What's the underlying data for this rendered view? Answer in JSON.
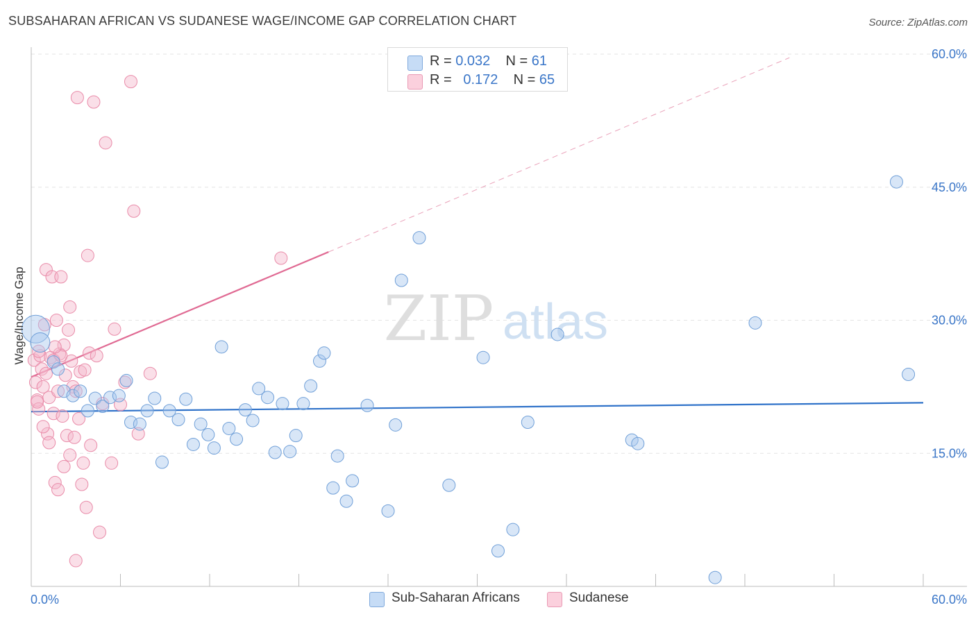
{
  "title": "SUBSAHARAN AFRICAN VS SUDANESE WAGE/INCOME GAP CORRELATION CHART",
  "source": "Source: ZipAtlas.com",
  "watermark": {
    "zip": "ZIP",
    "atlas": "atlas"
  },
  "legend": {
    "rows": [
      {
        "r_label": "R =",
        "r_value": "0.032",
        "n_label": "N =",
        "n_value": "61",
        "color": "#a8c8ee"
      },
      {
        "r_label": "R =",
        "r_value": "0.172",
        "n_label": "N =",
        "n_value": "65",
        "color": "#f5b8cb"
      }
    ]
  },
  "bottom_legend": {
    "items": [
      {
        "label": "Sub-Saharan Africans",
        "color": "#a8c8ee"
      },
      {
        "label": "Sudanese",
        "color": "#f5b8cb"
      }
    ]
  },
  "chart_data": {
    "type": "scatter",
    "title": "SUBSAHARAN AFRICAN VS SUDANESE WAGE/INCOME GAP CORRELATION CHART",
    "xlabel": "",
    "ylabel": "Wage/Income Gap",
    "xlim": [
      0,
      60
    ],
    "ylim": [
      0,
      60
    ],
    "x_tick_labels": [
      "0.0%",
      "60.0%"
    ],
    "y_ticks": [
      15,
      30,
      45,
      60
    ],
    "y_tick_labels": [
      "15.0%",
      "30.0%",
      "45.0%",
      "60.0%"
    ],
    "series": [
      {
        "name": "Sub-Saharan Africans",
        "color": "#a8c8ee",
        "stroke": "#6f9fd8",
        "points": [
          [
            0.3,
            29.0
          ],
          [
            0.6,
            27.5
          ],
          [
            1.5,
            25.3
          ],
          [
            1.8,
            24.5
          ],
          [
            2.2,
            22.0
          ],
          [
            2.8,
            21.5
          ],
          [
            3.3,
            22.0
          ],
          [
            3.8,
            19.8
          ],
          [
            4.3,
            21.2
          ],
          [
            4.8,
            20.3
          ],
          [
            5.3,
            21.3
          ],
          [
            5.9,
            21.5
          ],
          [
            6.4,
            23.2
          ],
          [
            6.7,
            18.5
          ],
          [
            7.3,
            18.3
          ],
          [
            7.8,
            19.8
          ],
          [
            8.3,
            21.2
          ],
          [
            8.8,
            14.0
          ],
          [
            9.3,
            19.8
          ],
          [
            9.9,
            18.8
          ],
          [
            10.4,
            21.1
          ],
          [
            10.9,
            16.0
          ],
          [
            11.4,
            18.3
          ],
          [
            11.9,
            17.1
          ],
          [
            12.3,
            15.6
          ],
          [
            12.8,
            27.0
          ],
          [
            13.3,
            17.8
          ],
          [
            13.8,
            16.6
          ],
          [
            14.4,
            19.9
          ],
          [
            14.9,
            18.7
          ],
          [
            15.3,
            22.3
          ],
          [
            15.9,
            21.3
          ],
          [
            16.4,
            15.1
          ],
          [
            16.9,
            20.6
          ],
          [
            17.4,
            15.2
          ],
          [
            17.8,
            17.0
          ],
          [
            18.3,
            20.6
          ],
          [
            18.8,
            22.6
          ],
          [
            19.4,
            25.4
          ],
          [
            19.7,
            26.3
          ],
          [
            20.3,
            11.1
          ],
          [
            20.6,
            14.7
          ],
          [
            21.2,
            9.6
          ],
          [
            21.6,
            11.9
          ],
          [
            22.6,
            20.4
          ],
          [
            24.0,
            8.5
          ],
          [
            24.5,
            18.2
          ],
          [
            24.9,
            34.5
          ],
          [
            26.1,
            39.3
          ],
          [
            28.1,
            11.4
          ],
          [
            30.4,
            25.8
          ],
          [
            31.4,
            4.0
          ],
          [
            32.4,
            6.4
          ],
          [
            33.4,
            18.5
          ],
          [
            35.4,
            28.4
          ],
          [
            40.4,
            16.5
          ],
          [
            40.8,
            16.1
          ],
          [
            46.0,
            1.0
          ],
          [
            48.7,
            29.7
          ],
          [
            58.2,
            45.6
          ],
          [
            59.0,
            23.9
          ]
        ]
      },
      {
        "name": "Sudanese",
        "color": "#f5b8cb",
        "stroke": "#e98aa8",
        "points": [
          [
            0.2,
            25.5
          ],
          [
            0.3,
            23.0
          ],
          [
            0.4,
            21.0
          ],
          [
            0.5,
            20.0
          ],
          [
            0.6,
            26.0
          ],
          [
            0.7,
            24.5
          ],
          [
            0.8,
            22.5
          ],
          [
            0.9,
            29.5
          ],
          [
            1.0,
            35.7
          ],
          [
            1.1,
            17.2
          ],
          [
            1.2,
            21.3
          ],
          [
            1.3,
            25.8
          ],
          [
            1.4,
            34.9
          ],
          [
            1.5,
            19.5
          ],
          [
            1.6,
            11.7
          ],
          [
            1.7,
            30.0
          ],
          [
            1.8,
            10.9
          ],
          [
            1.9,
            26.2
          ],
          [
            2.0,
            34.9
          ],
          [
            2.1,
            19.2
          ],
          [
            2.2,
            27.2
          ],
          [
            2.3,
            23.8
          ],
          [
            2.4,
            17.0
          ],
          [
            2.5,
            28.9
          ],
          [
            2.6,
            31.5
          ],
          [
            2.7,
            25.4
          ],
          [
            2.8,
            22.5
          ],
          [
            2.9,
            16.8
          ],
          [
            3.0,
            2.9
          ],
          [
            3.1,
            55.1
          ],
          [
            3.2,
            18.9
          ],
          [
            3.3,
            24.2
          ],
          [
            3.4,
            11.5
          ],
          [
            3.5,
            13.9
          ],
          [
            3.6,
            24.4
          ],
          [
            3.7,
            8.9
          ],
          [
            3.8,
            37.3
          ],
          [
            3.9,
            26.3
          ],
          [
            4.0,
            15.9
          ],
          [
            4.2,
            54.6
          ],
          [
            4.4,
            26.0
          ],
          [
            4.6,
            6.1
          ],
          [
            5.0,
            50.0
          ],
          [
            5.4,
            13.9
          ],
          [
            5.6,
            29.0
          ],
          [
            6.0,
            20.5
          ],
          [
            6.3,
            23.0
          ],
          [
            6.7,
            56.9
          ],
          [
            6.9,
            42.3
          ],
          [
            7.2,
            17.2
          ],
          [
            8.0,
            24.0
          ],
          [
            1.5,
            25.5
          ],
          [
            0.5,
            26.5
          ],
          [
            2.0,
            26.0
          ],
          [
            1.0,
            24.0
          ],
          [
            0.8,
            18.0
          ],
          [
            1.8,
            22.0
          ],
          [
            2.6,
            14.8
          ],
          [
            3.0,
            22.0
          ],
          [
            4.8,
            20.6
          ],
          [
            0.4,
            20.8
          ],
          [
            1.2,
            16.2
          ],
          [
            2.2,
            13.5
          ],
          [
            16.8,
            37.0
          ],
          [
            1.6,
            27.0
          ]
        ]
      }
    ],
    "trend_lines": [
      {
        "series": "Sub-Saharan Africans",
        "x0": 0,
        "y0": 19.7,
        "x1": 60,
        "y1": 20.7,
        "color": "#2f72c9",
        "style": "solid"
      },
      {
        "series": "Sudanese",
        "x0": 0,
        "y0": 23.6,
        "x1": 20,
        "y1": 37.7,
        "color": "#e06a93",
        "style": "solid"
      },
      {
        "series": "Sudanese",
        "x0": 20,
        "y0": 37.7,
        "x1": 51.0,
        "y1": 59.6,
        "color": "#e9a0b8",
        "style": "dashed"
      }
    ]
  }
}
